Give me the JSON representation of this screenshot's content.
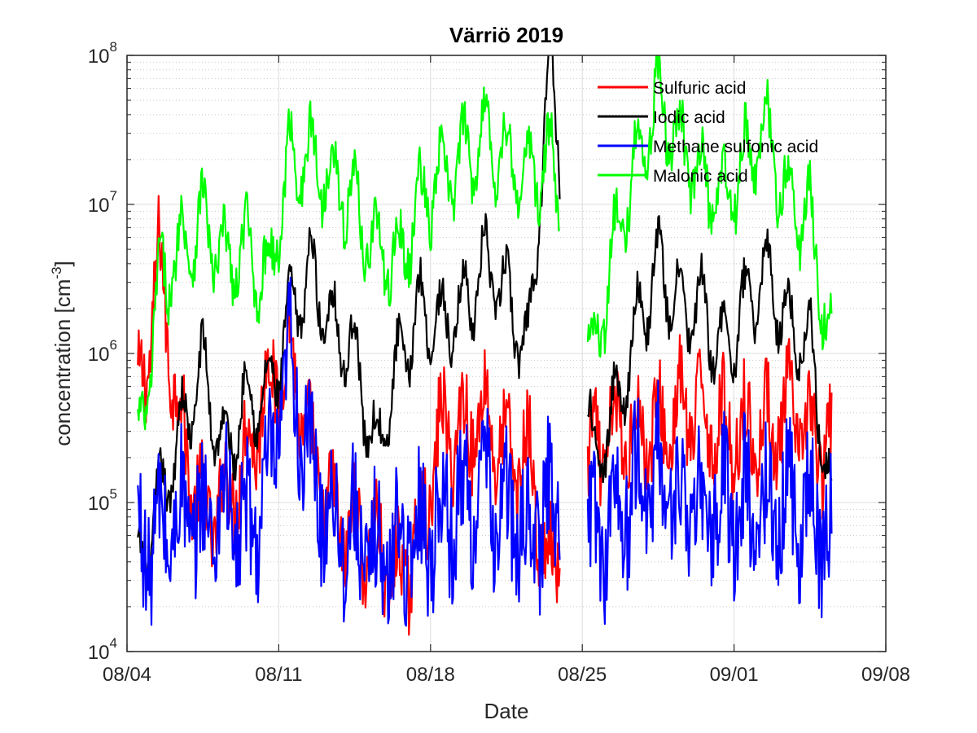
{
  "chart_data": {
    "type": "line",
    "title": "Värriö 2019",
    "xlabel": "Date",
    "ylabel": "concentration [cm",
    "ylabel_exponent": "-3",
    "ylabel_suffix": "]",
    "yscale": "log",
    "ylim": [
      10000,
      100000000
    ],
    "xlim": [
      "2019-08-04",
      "2019-09-08"
    ],
    "x_ticks": [
      "08/04",
      "08/11",
      "08/18",
      "08/25",
      "09/01",
      "09/08"
    ],
    "y_ticks": [
      {
        "base": "10",
        "exp": "4"
      },
      {
        "base": "10",
        "exp": "5"
      },
      {
        "base": "10",
        "exp": "6"
      },
      {
        "base": "10",
        "exp": "7"
      },
      {
        "base": "10",
        "exp": "8"
      }
    ],
    "grid": true,
    "legend_position": "top-right",
    "data_gap": [
      "2019-08-23",
      "2019-08-25"
    ],
    "series": [
      {
        "name": "Sulfuric acid",
        "color": "#ff0000",
        "x": [
          "08-04",
          "08-05",
          "08-06",
          "08-07",
          "08-08",
          "08-09",
          "08-10",
          "08-11",
          "08-12",
          "08-13",
          "08-14",
          "08-15",
          "08-16",
          "08-17",
          "08-18",
          "08-19",
          "08-20",
          "08-21",
          "08-22",
          "08-23",
          "08-25",
          "08-26",
          "08-27",
          "08-28",
          "08-29",
          "08-30",
          "08-31",
          "09-01",
          "09-02",
          "09-03",
          "09-04",
          "09-05"
        ],
        "y": [
          400000,
          4000000,
          300000,
          80000,
          100000,
          200000,
          600000,
          1000000,
          200000,
          80000,
          60000,
          50000,
          30000,
          60000,
          300000,
          300000,
          400000,
          200000,
          200000,
          30000,
          200000,
          300000,
          300000,
          300000,
          400000,
          400000,
          300000,
          300000,
          300000,
          400000,
          300000,
          200000
        ]
      },
      {
        "name": "Iodic acid",
        "color": "#000000",
        "x": [
          "08-04",
          "08-05",
          "08-06",
          "08-07",
          "08-08",
          "08-09",
          "08-10",
          "08-11",
          "08-12",
          "08-13",
          "08-14",
          "08-15",
          "08-16",
          "08-17",
          "08-18",
          "08-19",
          "08-20",
          "08-21",
          "08-22",
          "08-23",
          "08-25",
          "08-26",
          "08-27",
          "08-28",
          "08-29",
          "08-30",
          "08-31",
          "09-01",
          "09-02",
          "09-03",
          "09-04",
          "09-05"
        ],
        "y": [
          30000,
          100000,
          300000,
          800000,
          200000,
          500000,
          500000,
          1800000,
          3500000,
          1500000,
          1000000,
          200000,
          800000,
          2000000,
          1500000,
          2000000,
          4000000,
          2500000,
          1000000,
          100000000,
          200000,
          400000,
          1500000,
          4000000,
          2000000,
          2000000,
          1000000,
          2000000,
          3500000,
          1500000,
          1200000,
          100000
        ]
      },
      {
        "name": "Methane sulfonic acid",
        "color": "#0000ff",
        "x": [
          "08-04",
          "08-05",
          "08-06",
          "08-07",
          "08-08",
          "08-09",
          "08-10",
          "08-11",
          "08-12",
          "08-13",
          "08-14",
          "08-15",
          "08-16",
          "08-17",
          "08-18",
          "08-19",
          "08-20",
          "08-21",
          "08-22",
          "08-23",
          "08-25",
          "08-26",
          "08-27",
          "08-28",
          "08-29",
          "08-30",
          "08-31",
          "09-01",
          "09-02",
          "09-03",
          "09-04",
          "09-05"
        ],
        "y": [
          50000,
          60000,
          80000,
          70000,
          100000,
          60000,
          120000,
          900000,
          150000,
          80000,
          60000,
          40000,
          50000,
          60000,
          80000,
          100000,
          120000,
          80000,
          60000,
          100000,
          60000,
          80000,
          120000,
          150000,
          100000,
          80000,
          100000,
          90000,
          80000,
          100000,
          90000,
          50000
        ]
      },
      {
        "name": "Malonic acid",
        "color": "#00ff00",
        "x": [
          "08-04",
          "08-05",
          "08-06",
          "08-07",
          "08-08",
          "08-09",
          "08-10",
          "08-11",
          "08-12",
          "08-13",
          "08-14",
          "08-15",
          "08-16",
          "08-17",
          "08-18",
          "08-19",
          "08-20",
          "08-21",
          "08-22",
          "08-23",
          "08-25",
          "08-26",
          "08-27",
          "08-28",
          "08-29",
          "08-30",
          "08-31",
          "09-01",
          "09-02",
          "09-03",
          "09-04",
          "09-05"
        ],
        "y": [
          200000,
          3000000,
          5000000,
          8000000,
          4000000,
          5000000,
          3000000,
          20000000,
          20000000,
          15000000,
          10000000,
          5000000,
          4000000,
          10000000,
          15000000,
          20000000,
          30000000,
          20000000,
          15000000,
          20000000,
          1000000,
          5000000,
          20000000,
          50000000,
          25000000,
          15000000,
          10000000,
          20000000,
          30000000,
          10000000,
          8000000,
          1000000
        ]
      }
    ]
  }
}
